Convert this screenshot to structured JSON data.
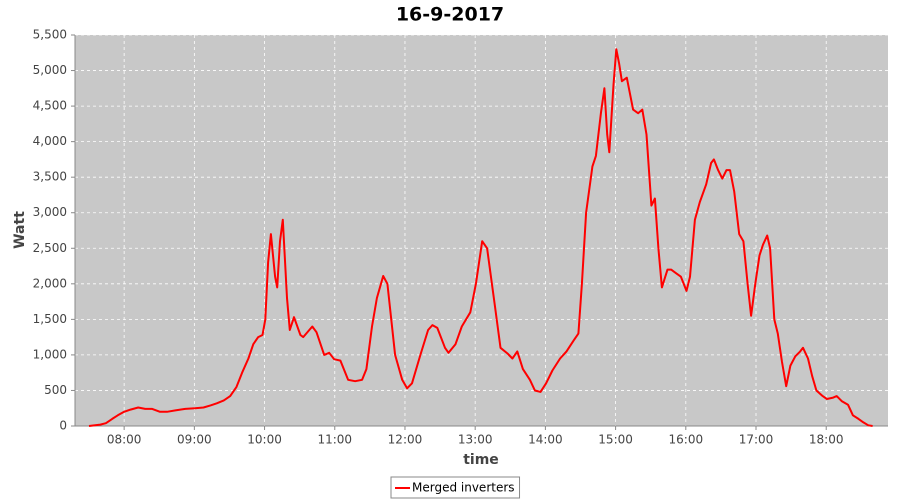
{
  "chart_data": {
    "type": "line",
    "title": "16-9-2017",
    "x_label": "time",
    "y_label": "Watt",
    "x": [
      7.5,
      7.66,
      7.74,
      7.83,
      7.91,
      8.0,
      8.09,
      8.2,
      8.3,
      8.4,
      8.51,
      8.61,
      8.73,
      8.87,
      9.01,
      9.13,
      9.23,
      9.32,
      9.42,
      9.51,
      9.6,
      9.68,
      9.77,
      9.84,
      9.91,
      9.97,
      10.01,
      10.05,
      10.09,
      10.15,
      10.18,
      10.22,
      10.26,
      10.32,
      10.36,
      10.42,
      10.51,
      10.55,
      10.68,
      10.74,
      10.85,
      10.92,
      10.99,
      11.08,
      11.19,
      11.29,
      11.39,
      11.45,
      11.53,
      11.6,
      11.69,
      11.75,
      11.86,
      11.96,
      12.03,
      12.1,
      12.22,
      12.33,
      12.39,
      12.46,
      12.57,
      12.62,
      12.72,
      12.81,
      12.93,
      13.01,
      13.1,
      13.17,
      13.28,
      13.36,
      13.46,
      13.53,
      13.6,
      13.68,
      13.78,
      13.85,
      13.93,
      14.01,
      14.1,
      14.21,
      14.3,
      14.4,
      14.47,
      14.52,
      14.58,
      14.67,
      14.72,
      14.79,
      14.84,
      14.88,
      14.91,
      14.97,
      15.01,
      15.05,
      15.09,
      15.16,
      15.25,
      15.32,
      15.38,
      15.44,
      15.51,
      15.56,
      15.61,
      15.66,
      15.74,
      15.79,
      15.86,
      15.93,
      16.01,
      16.06,
      16.13,
      16.2,
      16.29,
      16.36,
      16.4,
      16.46,
      16.52,
      16.58,
      16.63,
      16.69,
      16.76,
      16.82,
      16.88,
      16.93,
      16.99,
      17.05,
      17.1,
      17.16,
      17.2,
      17.26,
      17.31,
      17.37,
      17.43,
      17.49,
      17.56,
      17.63,
      17.67,
      17.74,
      17.8,
      17.86,
      17.95,
      18.01,
      18.1,
      18.15,
      18.22,
      18.31,
      18.38,
      18.46,
      18.53,
      18.6,
      18.66
    ],
    "series": [
      {
        "name": "Merged inverters",
        "color": "#ff0000",
        "values": [
          0,
          20,
          40,
          100,
          150,
          200,
          230,
          260,
          240,
          240,
          200,
          200,
          220,
          240,
          250,
          260,
          290,
          320,
          360,
          420,
          550,
          750,
          950,
          1150,
          1250,
          1280,
          1500,
          2300,
          2700,
          2100,
          1950,
          2600,
          2900,
          1800,
          1350,
          1530,
          1280,
          1250,
          1400,
          1320,
          1000,
          1030,
          940,
          920,
          650,
          630,
          650,
          800,
          1400,
          1800,
          2110,
          2000,
          1000,
          650,
          530,
          600,
          1000,
          1350,
          1420,
          1380,
          1100,
          1030,
          1150,
          1400,
          1600,
          2000,
          2600,
          2500,
          1700,
          1100,
          1020,
          950,
          1050,
          800,
          650,
          500,
          480,
          600,
          780,
          950,
          1050,
          1200,
          1300,
          2000,
          3000,
          3650,
          3800,
          4400,
          4750,
          4100,
          3850,
          4800,
          5300,
          5100,
          4850,
          4900,
          4450,
          4400,
          4450,
          4100,
          3100,
          3200,
          2500,
          1950,
          2200,
          2200,
          2150,
          2100,
          1900,
          2100,
          2900,
          3150,
          3400,
          3700,
          3750,
          3600,
          3480,
          3600,
          3600,
          3300,
          2700,
          2600,
          2000,
          1550,
          2000,
          2400,
          2550,
          2680,
          2500,
          1500,
          1300,
          900,
          560,
          850,
          980,
          1050,
          1100,
          950,
          700,
          500,
          420,
          380,
          400,
          420,
          350,
          300,
          150,
          100,
          50,
          10,
          0
        ]
      }
    ],
    "xlim": [
      7.3,
      18.88
    ],
    "xticks": [
      {
        "value": 8,
        "label": "08:00"
      },
      {
        "value": 9,
        "label": "09:00"
      },
      {
        "value": 10,
        "label": "10:00"
      },
      {
        "value": 11,
        "label": "11:00"
      },
      {
        "value": 12,
        "label": "12:00"
      },
      {
        "value": 13,
        "label": "13:00"
      },
      {
        "value": 14,
        "label": "14:00"
      },
      {
        "value": 15,
        "label": "15:00"
      },
      {
        "value": 16,
        "label": "16:00"
      },
      {
        "value": 17,
        "label": "17:00"
      },
      {
        "value": 18,
        "label": "18:00"
      }
    ],
    "ylim": [
      0,
      5500
    ],
    "yticks": [
      0,
      {
        "value": 500,
        "label": "500"
      },
      {
        "value": 1000,
        "label": "1,000"
      },
      {
        "value": 1500,
        "label": "1,500"
      },
      {
        "value": 2000,
        "label": "2,000"
      },
      {
        "value": 2500,
        "label": "2,500"
      },
      {
        "value": 3000,
        "label": "3,000"
      },
      {
        "value": 3500,
        "label": "3,500"
      },
      {
        "value": 4000,
        "label": "4,000"
      },
      {
        "value": 4500,
        "label": "4,500"
      },
      {
        "value": 5000,
        "label": "5,000"
      },
      {
        "value": 5500,
        "label": "5,500"
      }
    ],
    "grid": true,
    "legend": "bottom"
  }
}
